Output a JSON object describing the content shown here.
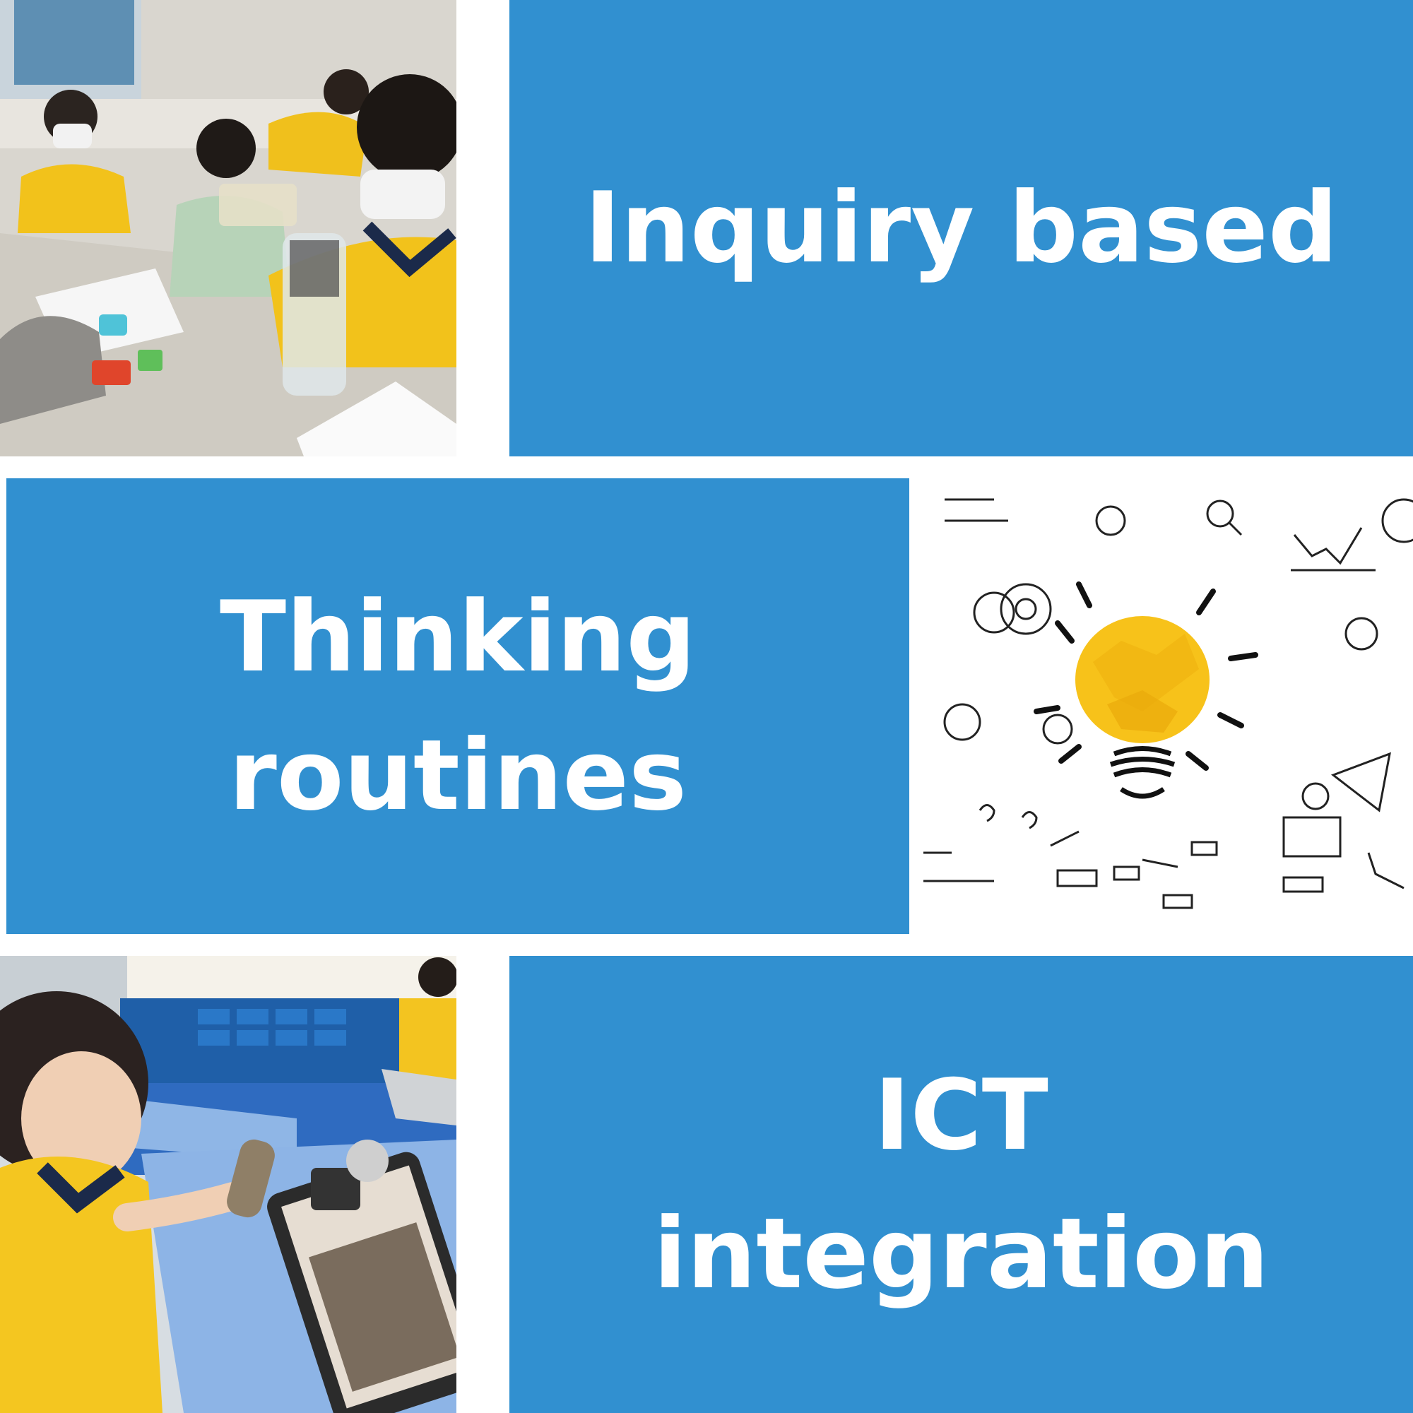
{
  "panels": {
    "inquiry": {
      "line1": "Inquiry based"
    },
    "thinking": {
      "line1": "Thinking",
      "line2": "routines"
    },
    "ict": {
      "line1": "ICT",
      "line2": "integration"
    }
  },
  "images": {
    "photo1": "students-pouring-water-experiment",
    "photo2": "crumpled-paper-lightbulb-doodles",
    "photo3": "student-making-kaleidoscope-with-tablet"
  },
  "colors": {
    "panel": "#3190d0",
    "text": "#ffffff"
  }
}
